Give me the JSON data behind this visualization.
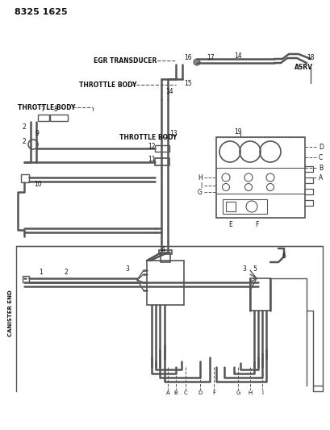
{
  "title": "8325 1625",
  "bg_color": "#ffffff",
  "line_color": "#555555",
  "text_color": "#111111",
  "labels": {
    "egr_transducer": "EGR TRANSDUCER",
    "throttle_body_1": "THROTTLE BODY",
    "throttle_body_2": "THROTTLE BODY",
    "throttle_body_3": "THROTTLE BODY",
    "asrv": "ASRV",
    "canister_end": "CANISTER END"
  }
}
